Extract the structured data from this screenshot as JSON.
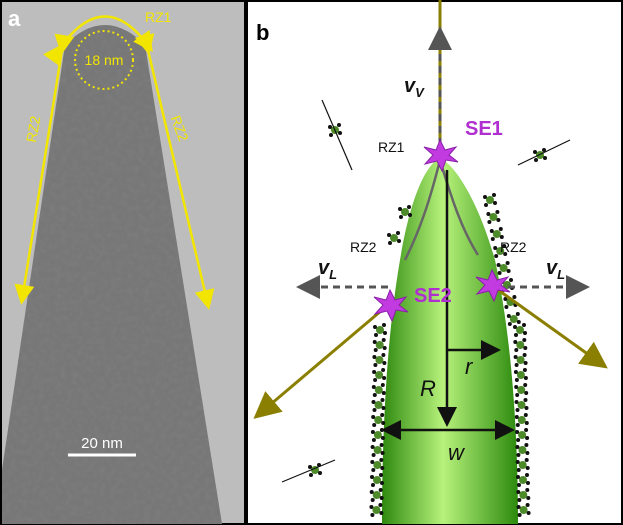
{
  "panel_a": {
    "label": "a",
    "rz1": "RZ1",
    "diameter": "18 nm",
    "rz2_left": "RZ2",
    "rz2_right": "RZ2",
    "scale_bar": "20 nm"
  },
  "panel_b": {
    "label": "b",
    "v_vertical": {
      "symbol": "v",
      "subscript": "V"
    },
    "se1": "SE1",
    "rz1": "RZ1",
    "rz2_left": "RZ2",
    "rz2_right": "RZ2",
    "v_left": {
      "symbol": "v",
      "subscript": "L"
    },
    "v_right": {
      "symbol": "v",
      "subscript": "L"
    },
    "se2": "SE2",
    "r": "r",
    "R": "R",
    "w": "w"
  }
}
